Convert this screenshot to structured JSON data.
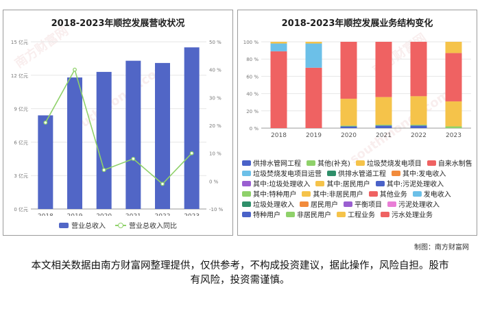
{
  "left_panel": {
    "title": "2018-2023年顺控发展营收状况",
    "watermarks": [
      "南方财富网",
      "southmoney.com"
    ],
    "legend": {
      "bar": "营业总收入",
      "line": "营业总收入同比"
    },
    "colors": {
      "bar": "#5166c6",
      "line": "#8fd16a"
    }
  },
  "right_panel": {
    "title": "2018-2023年顺控发展业务结构变化",
    "legend_items": [
      {
        "label": "供排水管网工程",
        "color": "#4a62c8"
      },
      {
        "label": "其他(补充)",
        "color": "#8fd16a"
      },
      {
        "label": "垃圾焚烧发电项目",
        "color": "#f5c34a"
      },
      {
        "label": "自来水制售",
        "color": "#ef6262"
      },
      {
        "label": "垃圾焚烧发电项目运营",
        "color": "#6cc0e8"
      },
      {
        "label": "供排水管道工程",
        "color": "#2f8f6a"
      },
      {
        "label": "其中:发电收入",
        "color": "#f28b3c"
      },
      {
        "label": "其中:垃圾处理收入",
        "color": "#9a5fd1"
      },
      {
        "label": "其中:居民用户",
        "color": "#f5c34a"
      },
      {
        "label": "其中:污泥处理收入",
        "color": "#4a62c8"
      },
      {
        "label": "其中:特种用户",
        "color": "#8fd16a"
      },
      {
        "label": "其中:非居民用户",
        "color": "#f5c34a"
      },
      {
        "label": "其他业务",
        "color": "#ef6262"
      },
      {
        "label": "发电收入",
        "color": "#6cc0e8"
      },
      {
        "label": "垃圾处理收入",
        "color": "#2f8f6a"
      },
      {
        "label": "居民用户",
        "color": "#f28b3c"
      },
      {
        "label": "平衡项目",
        "color": "#9a5fd1"
      },
      {
        "label": "污泥处理收入",
        "color": "#e97ed6"
      },
      {
        "label": "特种用户",
        "color": "#4a62c8"
      },
      {
        "label": "非居民用户",
        "color": "#8fd16a"
      },
      {
        "label": "工程业务",
        "color": "#f5c34a"
      },
      {
        "label": "污水处理业务",
        "color": "#ef6262"
      }
    ]
  },
  "credit": "制图：南方财富网",
  "disclaimer": "本文相关数据由南方财富网整理提供，仅供参考，不构成投资建议，据此操作，风险自担。股市有风险，投资需谨慎。",
  "chart_data": [
    {
      "type": "bar",
      "title": "2018-2023年顺控发展营收状况",
      "categories": [
        "2018",
        "2019",
        "2020",
        "2021",
        "2022",
        "2023"
      ],
      "series": [
        {
          "name": "营业总收入",
          "type": "bar",
          "axis": "left",
          "unit": "亿元",
          "values": [
            8.4,
            11.8,
            12.3,
            13.3,
            13.1,
            14.5
          ]
        },
        {
          "name": "营业总收入同比",
          "type": "line",
          "axis": "right",
          "unit": "%",
          "values": [
            21,
            40,
            4,
            8,
            -1,
            10
          ]
        }
      ],
      "y_left": {
        "min": 0,
        "max": 15,
        "ticks": [
          0,
          3,
          6,
          9,
          12,
          15
        ],
        "tick_labels": [
          "0 亿元",
          "3 亿元",
          "6 亿元",
          "9 亿元",
          "12 亿元",
          "15 亿元"
        ]
      },
      "y_right": {
        "min": -10,
        "max": 50,
        "ticks": [
          -10,
          0,
          10,
          20,
          30,
          40,
          50
        ],
        "tick_labels": [
          "-10 %",
          "0 %",
          "10 %",
          "20 %",
          "30 %",
          "40 %",
          "50 %"
        ]
      },
      "grid": true,
      "legend": "bottom"
    },
    {
      "type": "bar",
      "stacked": true,
      "percent": true,
      "title": "2018-2023年顺控发展业务结构变化",
      "categories": [
        "2018",
        "2019",
        "2020",
        "2021",
        "2022",
        "2023"
      ],
      "y_axis": {
        "min": 0,
        "max": 100,
        "ticks": [
          0,
          20,
          40,
          60,
          80,
          100
        ],
        "tick_labels": [
          "0 %",
          "20 %",
          "40 %",
          "60 %",
          "80 %",
          "100 %"
        ]
      },
      "series": [
        {
          "name": "供排水管网工程",
          "color": "#4a62c8",
          "values": [
            0,
            0,
            2,
            3,
            3,
            0
          ]
        },
        {
          "name": "其他(补充)",
          "color": "#8fd16a",
          "values": [
            0,
            0,
            1,
            1,
            1,
            2
          ]
        },
        {
          "name": "垃圾焚烧发电项目",
          "color": "#f5c34a",
          "values": [
            0,
            0,
            31,
            32,
            33,
            29
          ]
        },
        {
          "name": "自来水制售",
          "color": "#ef6262",
          "values": [
            89,
            70,
            66,
            64,
            63,
            56
          ]
        },
        {
          "name": "垃圾焚烧发电项目运营",
          "color": "#6cc0e8",
          "values": [
            9,
            28,
            0,
            0,
            0,
            0
          ]
        },
        {
          "name": "其他业务",
          "color": "#f5c34a",
          "values": [
            2,
            2,
            0,
            0,
            0,
            13
          ]
        }
      ],
      "legend": "bottom"
    }
  ]
}
